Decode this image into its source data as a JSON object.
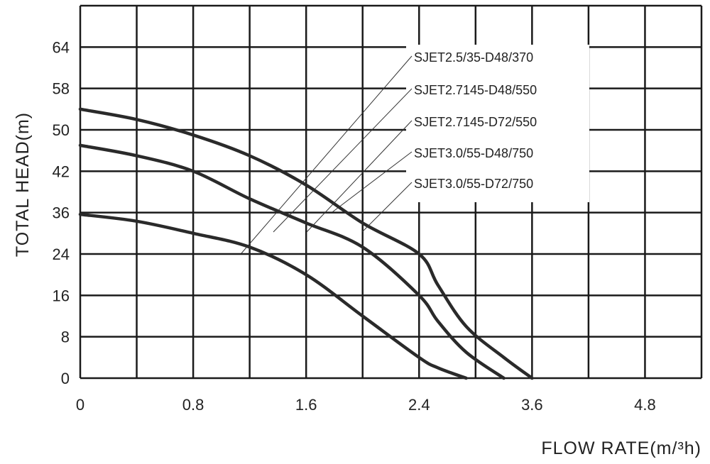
{
  "chart_data": {
    "type": "line",
    "xlabel": "FLOW RATE(m/³h)",
    "ylabel": "TOTAL HEAD(m)",
    "x_ticks": [
      "0",
      "0.8",
      "1.6",
      "2.4",
      "3.6",
      "4.8"
    ],
    "y_ticks": [
      "0",
      "8",
      "16",
      "24",
      "36",
      "42",
      "50",
      "58",
      "64"
    ],
    "grid": true,
    "legend_labels": [
      "SJET2.5/35-D48/370",
      "SJET2.7145-D48/550",
      "SJET2.7145-D72/550",
      "SJET3.0/55-D48/750",
      "SJET3.0/55-D72/750"
    ],
    "series": [
      {
        "x": [
          0,
          0.4,
          0.8,
          1.2,
          1.6,
          2.0,
          2.4,
          2.6,
          2.9
        ],
        "y": [
          35.5,
          33.5,
          30,
          26,
          20,
          12,
          4,
          2,
          0
        ]
      },
      {
        "x": [
          0,
          0.4,
          0.8,
          1.2,
          1.6,
          2.0,
          2.4,
          2.6,
          2.9,
          3.3
        ],
        "y": [
          47,
          45,
          42,
          38,
          33,
          26,
          16,
          11,
          5,
          0
        ]
      },
      {
        "x": [
          0,
          0.4,
          0.8,
          1.2,
          1.6,
          2.0,
          2.4,
          2.6,
          2.9,
          3.3,
          3.6
        ],
        "y": [
          54,
          52,
          49,
          45,
          40,
          33,
          24,
          18,
          10,
          4,
          0
        ]
      }
    ]
  }
}
